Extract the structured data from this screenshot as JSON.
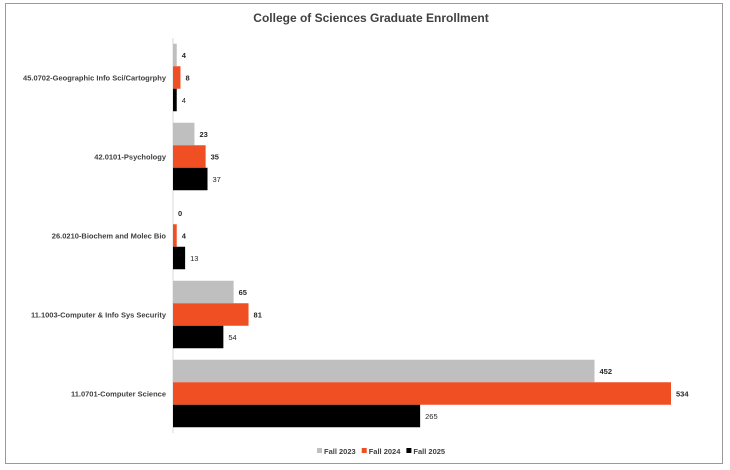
{
  "chart_data": {
    "type": "bar",
    "orientation": "horizontal",
    "title": "College of Sciences Graduate Enrollment",
    "xlabel": "",
    "ylabel": "",
    "xlim": [
      0,
      540
    ],
    "grid": false,
    "legend_position": "bottom",
    "categories": [
      "45.0702-Geographic Info Sci/Cartogrphy",
      "42.0101-Psychology",
      "26.0210-Biochem and Molec Bio",
      "11.1003-Computer & Info Sys Security",
      "11.0701-Computer Science"
    ],
    "series": [
      {
        "name": "Fall 2023",
        "color": "#bfbfbf",
        "values": [
          4,
          23,
          0,
          65,
          452
        ],
        "label_bold": true
      },
      {
        "name": "Fall 2024",
        "color": "#f04e23",
        "values": [
          8,
          35,
          4,
          81,
          534
        ],
        "label_bold": true
      },
      {
        "name": "Fall 2025",
        "color": "#000000",
        "values": [
          4,
          37,
          13,
          54,
          265
        ],
        "label_bold": false
      }
    ]
  }
}
